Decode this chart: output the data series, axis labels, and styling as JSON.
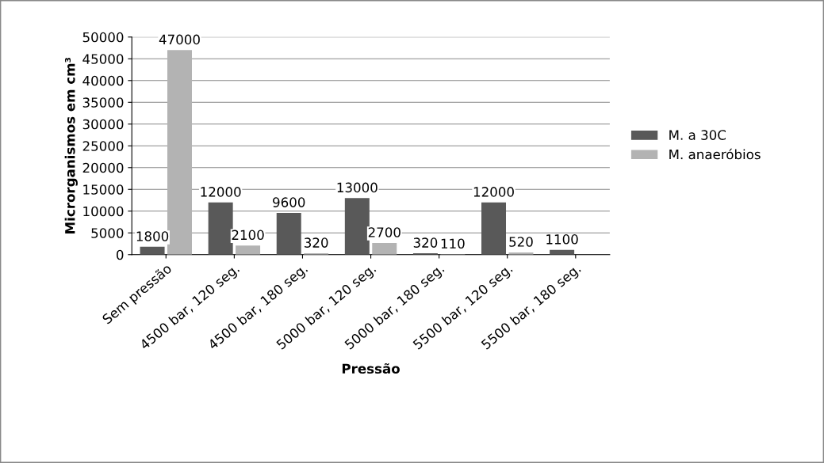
{
  "chart_data": {
    "type": "bar",
    "xlabel": "Pressão",
    "ylabel": "Microrganismos em cm³",
    "categories": [
      "Sem pressão",
      "4500 bar, 120 seg.",
      "4500 bar, 180 seg.",
      "5000 bar, 120 seg.",
      "5000 bar, 180 seg.",
      "5500 bar, 120 seg.",
      "5500 bar, 180 seg."
    ],
    "series": [
      {
        "name": "M. a 30C",
        "color": "#595959",
        "values": [
          1800,
          12000,
          9600,
          13000,
          320,
          12000,
          1100
        ]
      },
      {
        "name": "M. anaeróbios",
        "color": "#b3b3b3",
        "values": [
          47000,
          2100,
          320,
          2700,
          110,
          520,
          null
        ]
      }
    ],
    "ylim": [
      0,
      50000
    ],
    "yticks": [
      0,
      5000,
      10000,
      15000,
      20000,
      25000,
      30000,
      35000,
      40000,
      45000,
      50000
    ],
    "grid": "y",
    "legend": "right",
    "data_labels": true
  }
}
